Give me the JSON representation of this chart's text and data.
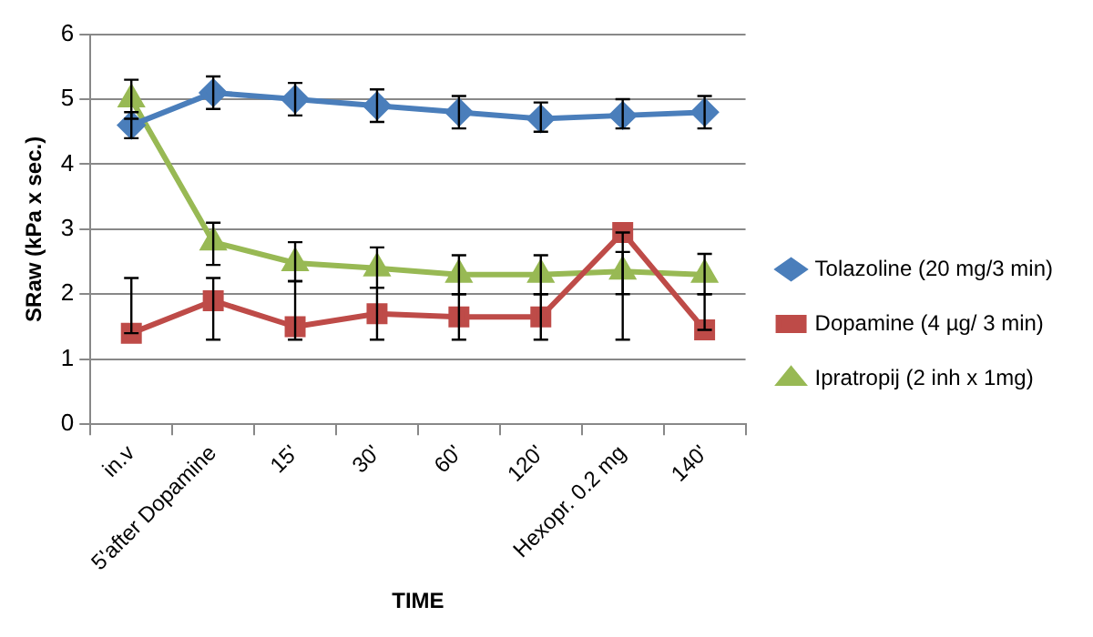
{
  "chart_data": {
    "type": "line",
    "xlabel": "TIME",
    "ylabel": "SRaw (kPa x sec.)",
    "categories": [
      "in.v",
      "5'after Dopamine",
      "15'",
      "30'",
      "60'",
      "120'",
      "Hexopr. 0.2 mg",
      "140'"
    ],
    "series": [
      {
        "name": "Tolazoline (20 mg/3 min)",
        "color": "#4a7ebb",
        "marker": "diamond",
        "values": [
          4.6,
          5.1,
          5.0,
          4.9,
          4.8,
          4.7,
          4.75,
          4.8
        ],
        "errors": [
          [
            4.4,
            4.8
          ],
          [
            4.85,
            5.35
          ],
          [
            4.75,
            5.25
          ],
          [
            4.65,
            5.15
          ],
          [
            4.55,
            5.05
          ],
          [
            4.5,
            4.95
          ],
          [
            4.55,
            5.0
          ],
          [
            4.55,
            5.05
          ]
        ]
      },
      {
        "name": "Dopamine (4 µg/ 3 min)",
        "color": "#be4b48",
        "marker": "square",
        "values": [
          1.4,
          1.9,
          1.5,
          1.7,
          1.65,
          1.65,
          2.95,
          1.45
        ],
        "errors": [
          [
            1.4,
            2.25
          ],
          [
            1.3,
            2.25
          ],
          [
            1.3,
            2.2
          ],
          [
            1.3,
            2.1
          ],
          [
            1.3,
            2.0
          ],
          [
            1.3,
            2.0
          ],
          [
            1.3,
            2.95
          ],
          [
            1.45,
            2.0
          ]
        ]
      },
      {
        "name": "Ipratropij (2 inh x 1mg)",
        "color": "#98b954",
        "marker": "triangle",
        "values": [
          5.0,
          2.8,
          2.48,
          2.4,
          2.3,
          2.3,
          2.35,
          2.3
        ],
        "errors": [
          [
            4.7,
            5.3
          ],
          [
            2.45,
            3.1
          ],
          [
            2.2,
            2.8
          ],
          [
            2.1,
            2.72
          ],
          [
            2.0,
            2.6
          ],
          [
            2.0,
            2.6
          ],
          [
            2.0,
            2.65
          ],
          [
            2.0,
            2.62
          ]
        ]
      }
    ],
    "ylim": [
      0,
      6
    ],
    "yticks": [
      0,
      1,
      2,
      3,
      4,
      5,
      6
    ],
    "grid": "y",
    "legend": "right"
  }
}
